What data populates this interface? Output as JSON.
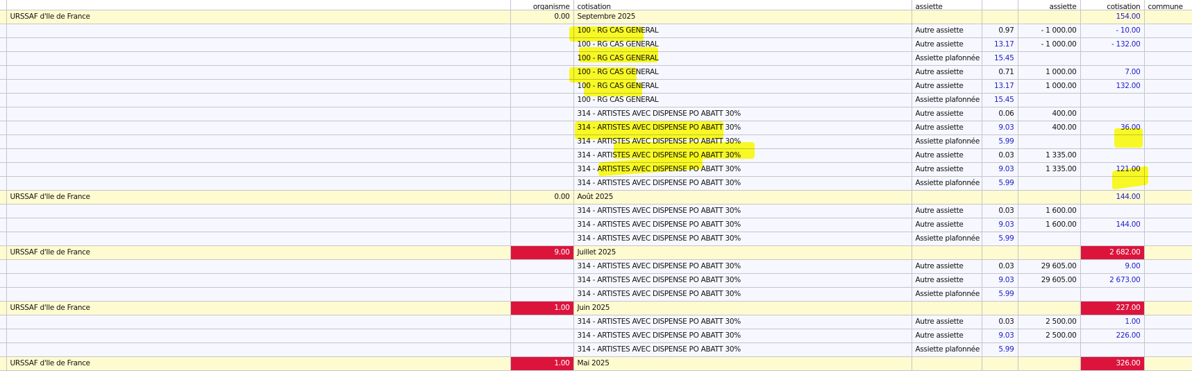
{
  "columns": [
    "",
    "organisme",
    "cotisation",
    "assiette",
    "",
    "assiette",
    "cotisation",
    "commune"
  ],
  "colors": {
    "group_bg": "#fffbd0",
    "detail_bg": "#f7f8ff",
    "alert_red": "#dc143c",
    "value_blue": "#1c1cc8",
    "highlight": "#ffff00"
  },
  "rows": [
    {
      "type": "group",
      "organisme": "URSSAF d'Ile de France",
      "org_value": "0.00",
      "org_alert": false,
      "period": "Septembre 2025",
      "total": "154.00",
      "total_alert": false
    },
    {
      "type": "detail",
      "label": "100 - RG CAS GENERAL",
      "base": "Autre assiette",
      "rate": "0.97",
      "rate_blue": false,
      "assiette": "- 1 000.00",
      "cotisation": "- 10.00"
    },
    {
      "type": "detail",
      "label": "100 - RG CAS GENERAL",
      "base": "Autre assiette",
      "rate": "13.17",
      "rate_blue": true,
      "assiette": "- 1 000.00",
      "cotisation": "- 132.00"
    },
    {
      "type": "detail",
      "label": "100 - RG CAS GENERAL",
      "base": "Assiette plafonnée",
      "rate": "15.45",
      "rate_blue": true,
      "assiette": "",
      "cotisation": ""
    },
    {
      "type": "detail",
      "label": "100 - RG CAS GENERAL",
      "base": "Autre assiette",
      "rate": "0.71",
      "rate_blue": false,
      "assiette": "1 000.00",
      "cotisation": "7.00"
    },
    {
      "type": "detail",
      "label": "100 - RG CAS GENERAL",
      "base": "Autre assiette",
      "rate": "13.17",
      "rate_blue": true,
      "assiette": "1 000.00",
      "cotisation": "132.00"
    },
    {
      "type": "detail",
      "label": "100 - RG CAS GENERAL",
      "base": "Assiette plafonnée",
      "rate": "15.45",
      "rate_blue": true,
      "assiette": "",
      "cotisation": ""
    },
    {
      "type": "detail",
      "label": "314 - ARTISTES AVEC DISPENSE PO ABATT 30%",
      "base": "Autre assiette",
      "rate": "0.06",
      "rate_blue": false,
      "assiette": "400.00",
      "cotisation": ""
    },
    {
      "type": "detail",
      "label": "314 - ARTISTES AVEC DISPENSE PO ABATT 30%",
      "base": "Autre assiette",
      "rate": "9.03",
      "rate_blue": true,
      "assiette": "400.00",
      "cotisation": "36.00"
    },
    {
      "type": "detail",
      "label": "314 - ARTISTES AVEC DISPENSE PO ABATT 30%",
      "base": "Assiette plafonnée",
      "rate": "5.99",
      "rate_blue": true,
      "assiette": "",
      "cotisation": ""
    },
    {
      "type": "detail",
      "label": "314 - ARTISTES AVEC DISPENSE PO ABATT 30%",
      "base": "Autre assiette",
      "rate": "0.03",
      "rate_blue": false,
      "assiette": "1 335.00",
      "cotisation": ""
    },
    {
      "type": "detail",
      "label": "314 - ARTISTES AVEC DISPENSE PO ABATT 30%",
      "base": "Autre assiette",
      "rate": "9.03",
      "rate_blue": true,
      "assiette": "1 335.00",
      "cotisation": "121.00"
    },
    {
      "type": "detail",
      "label": "314 - ARTISTES AVEC DISPENSE PO ABATT 30%",
      "base": "Assiette plafonnée",
      "rate": "5.99",
      "rate_blue": true,
      "assiette": "",
      "cotisation": ""
    },
    {
      "type": "group",
      "organisme": "URSSAF d'Ile de France",
      "org_value": "0.00",
      "org_alert": false,
      "period": "Août 2025",
      "total": "144.00",
      "total_alert": false
    },
    {
      "type": "detail",
      "label": "314 - ARTISTES AVEC DISPENSE PO ABATT 30%",
      "base": "Autre assiette",
      "rate": "0.03",
      "rate_blue": false,
      "assiette": "1 600.00",
      "cotisation": ""
    },
    {
      "type": "detail",
      "label": "314 - ARTISTES AVEC DISPENSE PO ABATT 30%",
      "base": "Autre assiette",
      "rate": "9.03",
      "rate_blue": true,
      "assiette": "1 600.00",
      "cotisation": "144.00"
    },
    {
      "type": "detail",
      "label": "314 - ARTISTES AVEC DISPENSE PO ABATT 30%",
      "base": "Assiette plafonnée",
      "rate": "5.99",
      "rate_blue": true,
      "assiette": "",
      "cotisation": ""
    },
    {
      "type": "group",
      "organisme": "URSSAF d'Ile de France",
      "org_value": "9.00",
      "org_alert": true,
      "period": "Juillet 2025",
      "total": "2 682.00",
      "total_alert": true
    },
    {
      "type": "detail",
      "label": "314 - ARTISTES AVEC DISPENSE PO ABATT 30%",
      "base": "Autre assiette",
      "rate": "0.03",
      "rate_blue": false,
      "assiette": "29 605.00",
      "cotisation": "9.00"
    },
    {
      "type": "detail",
      "label": "314 - ARTISTES AVEC DISPENSE PO ABATT 30%",
      "base": "Autre assiette",
      "rate": "9.03",
      "rate_blue": true,
      "assiette": "29 605.00",
      "cotisation": "2 673.00"
    },
    {
      "type": "detail",
      "label": "314 - ARTISTES AVEC DISPENSE PO ABATT 30%",
      "base": "Assiette plafonnée",
      "rate": "5.99",
      "rate_blue": true,
      "assiette": "",
      "cotisation": ""
    },
    {
      "type": "group",
      "organisme": "URSSAF d'Ile de France",
      "org_value": "1.00",
      "org_alert": true,
      "period": "Juin 2025",
      "total": "227.00",
      "total_alert": true
    },
    {
      "type": "detail",
      "label": "314 - ARTISTES AVEC DISPENSE PO ABATT 30%",
      "base": "Autre assiette",
      "rate": "0.03",
      "rate_blue": false,
      "assiette": "2 500.00",
      "cotisation": "1.00"
    },
    {
      "type": "detail",
      "label": "314 - ARTISTES AVEC DISPENSE PO ABATT 30%",
      "base": "Autre assiette",
      "rate": "9.03",
      "rate_blue": true,
      "assiette": "2 500.00",
      "cotisation": "226.00"
    },
    {
      "type": "detail",
      "label": "314 - ARTISTES AVEC DISPENSE PO ABATT 30%",
      "base": "Assiette plafonnée",
      "rate": "5.99",
      "rate_blue": true,
      "assiette": "",
      "cotisation": ""
    },
    {
      "type": "group",
      "organisme": "URSSAF d'Ile de France",
      "org_value": "1.00",
      "org_alert": true,
      "period": "Mai 2025",
      "total": "326.00",
      "total_alert": true
    }
  ]
}
